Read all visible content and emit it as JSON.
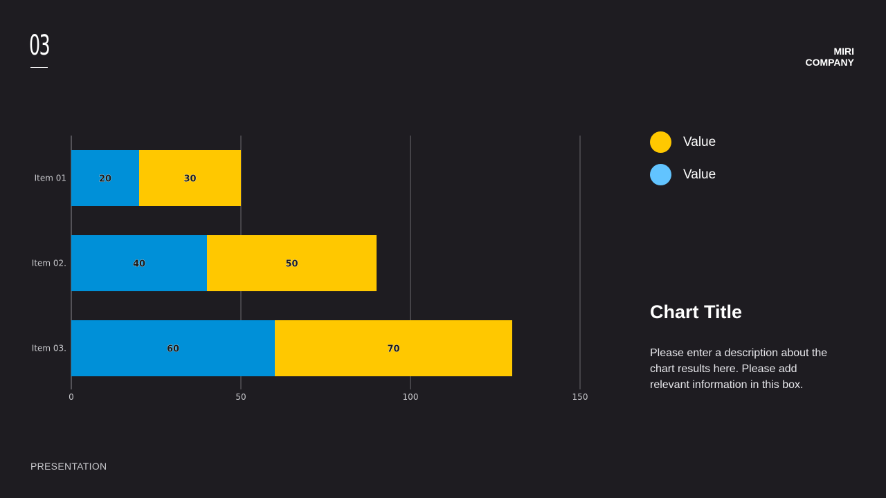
{
  "header": {
    "page_number": "03",
    "company_line1": "MIRI",
    "company_line2": "COMPANY"
  },
  "footer": {
    "label": "PRESENTATION"
  },
  "colors": {
    "background": "#1e1c21",
    "series_blue": "#0090d8",
    "series_yellow": "#ffc800",
    "legend_blue": "#62c4ff",
    "gridline": "#6c6a70",
    "axis_text": "#c8c8cc"
  },
  "legend": {
    "items": [
      {
        "label": "Value",
        "color": "#ffc800"
      },
      {
        "label": "Value",
        "color": "#62c4ff"
      }
    ]
  },
  "info": {
    "title": "Chart Title",
    "description": "Please enter a description about the chart results here. Please add relevant information in this box."
  },
  "chart_data": {
    "type": "bar",
    "orientation": "horizontal",
    "stacked": true,
    "categories": [
      "Item 01",
      "Item 02.",
      "Item 03."
    ],
    "series": [
      {
        "name": "Value",
        "color": "#0090d8",
        "values": [
          20,
          40,
          60
        ]
      },
      {
        "name": "Value",
        "color": "#ffc800",
        "values": [
          30,
          50,
          70
        ]
      }
    ],
    "xlim": [
      0,
      150
    ],
    "xticks": [
      0,
      50,
      100,
      150
    ],
    "title": "Chart Title",
    "xlabel": "",
    "ylabel": "",
    "grid": true
  }
}
